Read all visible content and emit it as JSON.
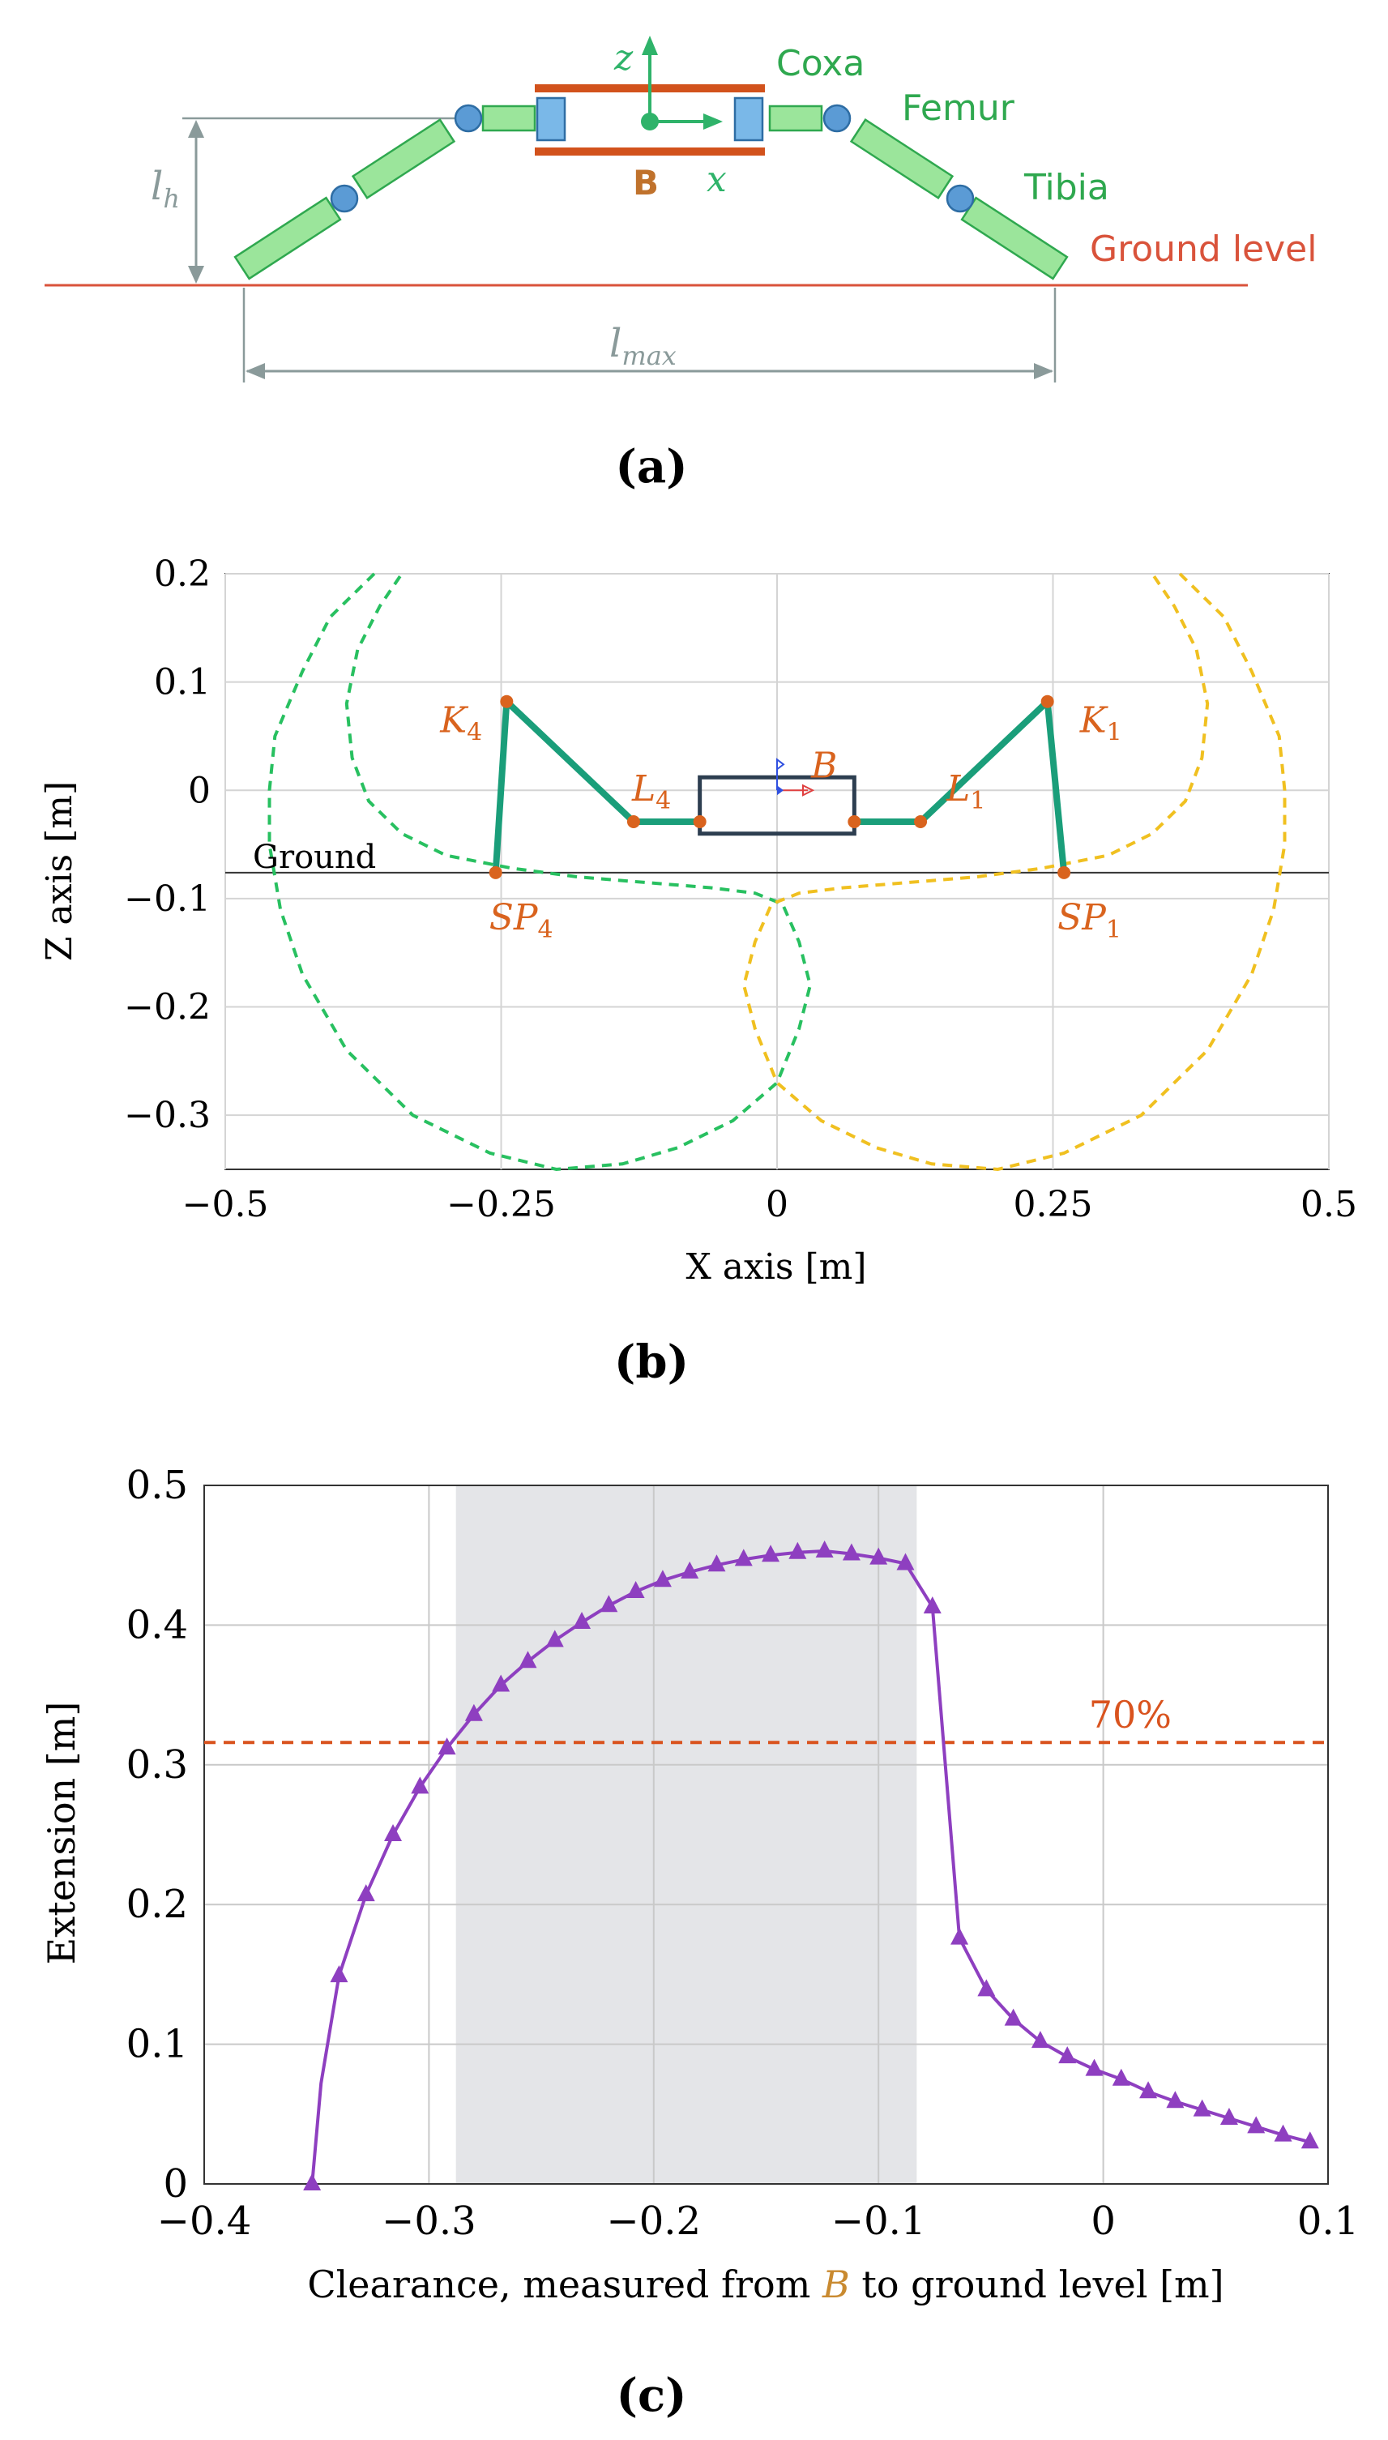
{
  "panel_a": {
    "label": "(a)",
    "coxa": "Coxa",
    "femur": "Femur",
    "tibia": "Tibia",
    "ground": "Ground level",
    "body_label": "B",
    "axis_z": "z",
    "axis_x": "x",
    "lh": "l",
    "lh_sub": "h",
    "lmax": "l",
    "lmax_sub": "max",
    "colors": {
      "link": "#9be59b",
      "link_stroke": "#2fa84f",
      "joint": "#5b9bd5",
      "motor": "#7ab8e8",
      "body": "#d2521c",
      "ground": "#d9533b",
      "dim": "#8a9a9a",
      "axis": "#2fb36a",
      "label_green": "#2fa84f",
      "label_orange": "#c0722c"
    }
  },
  "panel_b": {
    "label": "(b)",
    "chart_data": {
      "type": "scatter",
      "xlabel": "X axis [m]",
      "ylabel": "Z axis [m]",
      "xlim": [
        -0.5,
        0.5
      ],
      "ylim": [
        -0.35,
        0.2
      ],
      "xticks": [
        "−0.5",
        "−0.25",
        "0",
        "0.25",
        "0.5"
      ],
      "xtick_values": [
        -0.5,
        -0.25,
        0,
        0.25,
        0.5
      ],
      "yticks": [
        "0.2",
        "0.1",
        "0",
        "−0.1",
        "−0.2",
        "−0.3"
      ],
      "ytick_values": [
        0.2,
        0.1,
        0,
        -0.1,
        -0.2,
        -0.3
      ],
      "ground_label": "Ground",
      "ground_z": -0.076,
      "body_label": "B",
      "points": [
        {
          "name": "K",
          "sub": "4",
          "x": -0.245,
          "z": 0.082
        },
        {
          "name": "K",
          "sub": "1",
          "x": 0.245,
          "z": 0.082
        },
        {
          "name": "L",
          "sub": "4",
          "x": -0.13,
          "z": -0.029
        },
        {
          "name": "L",
          "sub": "1",
          "x": 0.13,
          "z": -0.029
        },
        {
          "name": "SP",
          "sub": "4",
          "x": -0.255,
          "z": -0.076
        },
        {
          "name": "SP",
          "sub": "1",
          "x": 0.26,
          "z": -0.076
        }
      ],
      "leg_green": [
        [
          -0.07,
          -0.029
        ],
        [
          -0.13,
          -0.029
        ],
        [
          -0.245,
          0.082
        ],
        [
          -0.255,
          -0.076
        ]
      ],
      "leg_orange": [
        [
          0.07,
          -0.029
        ],
        [
          0.13,
          -0.029
        ],
        [
          0.245,
          0.082
        ],
        [
          0.26,
          -0.076
        ]
      ],
      "body_rect": {
        "x0": -0.07,
        "x1": 0.07,
        "z0": -0.04,
        "z1": 0.012
      },
      "workspace_green": [
        [
          -0.365,
          0.2
        ],
        [
          -0.405,
          0.16
        ],
        [
          -0.43,
          0.11
        ],
        [
          -0.455,
          0.05
        ],
        [
          -0.46,
          0.0
        ],
        [
          -0.46,
          -0.05
        ],
        [
          -0.45,
          -0.11
        ],
        [
          -0.43,
          -0.17
        ],
        [
          -0.39,
          -0.24
        ],
        [
          -0.33,
          -0.3
        ],
        [
          -0.26,
          -0.335
        ],
        [
          -0.2,
          -0.35
        ],
        [
          -0.14,
          -0.345
        ],
        [
          -0.09,
          -0.33
        ],
        [
          -0.04,
          -0.305
        ],
        [
          0.0,
          -0.27
        ],
        [
          0.02,
          -0.22
        ],
        [
          0.03,
          -0.18
        ],
        [
          0.02,
          -0.14
        ],
        [
          0.005,
          -0.105
        ],
        [
          -0.02,
          -0.095
        ],
        [
          -0.06,
          -0.09
        ],
        [
          -0.12,
          -0.085
        ],
        [
          -0.18,
          -0.08
        ],
        [
          -0.24,
          -0.072
        ],
        [
          -0.3,
          -0.06
        ],
        [
          -0.34,
          -0.04
        ],
        [
          -0.37,
          -0.01
        ],
        [
          -0.385,
          0.03
        ],
        [
          -0.39,
          0.08
        ],
        [
          -0.38,
          0.13
        ],
        [
          -0.36,
          0.17
        ],
        [
          -0.34,
          0.2
        ]
      ],
      "workspace_orange": [
        [
          0.365,
          0.2
        ],
        [
          0.405,
          0.16
        ],
        [
          0.43,
          0.11
        ],
        [
          0.455,
          0.05
        ],
        [
          0.46,
          0.0
        ],
        [
          0.46,
          -0.05
        ],
        [
          0.45,
          -0.11
        ],
        [
          0.43,
          -0.17
        ],
        [
          0.39,
          -0.24
        ],
        [
          0.33,
          -0.3
        ],
        [
          0.26,
          -0.335
        ],
        [
          0.2,
          -0.35
        ],
        [
          0.14,
          -0.345
        ],
        [
          0.09,
          -0.33
        ],
        [
          0.04,
          -0.305
        ],
        [
          0.0,
          -0.27
        ],
        [
          -0.02,
          -0.22
        ],
        [
          -0.03,
          -0.18
        ],
        [
          -0.02,
          -0.14
        ],
        [
          -0.005,
          -0.105
        ],
        [
          0.02,
          -0.095
        ],
        [
          0.06,
          -0.09
        ],
        [
          0.12,
          -0.085
        ],
        [
          0.18,
          -0.08
        ],
        [
          0.24,
          -0.072
        ],
        [
          0.3,
          -0.06
        ],
        [
          0.34,
          -0.04
        ],
        [
          0.37,
          -0.01
        ],
        [
          0.385,
          0.03
        ],
        [
          0.39,
          0.08
        ],
        [
          0.38,
          0.13
        ],
        [
          0.36,
          0.17
        ],
        [
          0.34,
          0.2
        ]
      ],
      "colors": {
        "green": "#28c060",
        "orange": "#f0c020",
        "leg": "#1a9e7a",
        "point": "#d9631e",
        "body": "#2d3e50",
        "label": "#d9631e",
        "ground": "#333333"
      }
    }
  },
  "panel_c": {
    "label": "(c)",
    "chart_data": {
      "type": "line",
      "xlabel_prefix": "Clearance, measured from ",
      "xlabel_var": "B",
      "xlabel_suffix": " to ground level [m]",
      "ylabel": "Extension [m]",
      "xlim": [
        -0.4,
        0.1
      ],
      "ylim": [
        0,
        0.5
      ],
      "xticks": [
        "−0.4",
        "−0.3",
        "−0.2",
        "−0.1",
        "0",
        "0.1"
      ],
      "xtick_values": [
        -0.4,
        -0.3,
        -0.2,
        -0.1,
        0,
        0.1
      ],
      "yticks": [
        "0.5",
        "0.4",
        "0.3",
        "0.2",
        "0.1",
        "0"
      ],
      "ytick_values": [
        0.5,
        0.4,
        0.3,
        0.2,
        0.1,
        0
      ],
      "shaded_region": [
        -0.288,
        -0.083
      ],
      "threshold": {
        "value": 0.316,
        "label": "70%"
      },
      "series": [
        {
          "name": "extension",
          "x": [
            -0.352,
            -0.348,
            -0.34,
            -0.328,
            -0.316,
            -0.304,
            -0.292,
            -0.28,
            -0.268,
            -0.256,
            -0.244,
            -0.232,
            -0.22,
            -0.208,
            -0.196,
            -0.184,
            -0.172,
            -0.16,
            -0.148,
            -0.136,
            -0.124,
            -0.112,
            -0.1,
            -0.088,
            -0.076,
            -0.064,
            -0.052,
            -0.04,
            -0.028,
            -0.016,
            -0.004,
            0.008,
            0.02,
            0.032,
            0.044,
            0.056,
            0.068,
            0.08,
            0.092
          ],
          "y": [
            0.0,
            0.072,
            0.149,
            0.207,
            0.25,
            0.284,
            0.312,
            0.336,
            0.357,
            0.374,
            0.389,
            0.402,
            0.414,
            0.424,
            0.432,
            0.438,
            0.443,
            0.447,
            0.45,
            0.452,
            0.453,
            0.451,
            0.448,
            0.444,
            0.413,
            0.176,
            0.139,
            0.118,
            0.102,
            0.091,
            0.082,
            0.075,
            0.066,
            0.059,
            0.053,
            0.047,
            0.041,
            0.035,
            0.03
          ],
          "markers": [
            0,
            2,
            3,
            4,
            5,
            6,
            7,
            8,
            9,
            10,
            11,
            12,
            13,
            14,
            15,
            16,
            17,
            18,
            19,
            20,
            21,
            22,
            23,
            24,
            25,
            26,
            27,
            28,
            29,
            30,
            31,
            32,
            33,
            34,
            35,
            36,
            37,
            38
          ]
        }
      ],
      "colors": {
        "line": "#8e3fc0",
        "threshold": "#d9531e",
        "shade": "#e4e5e8",
        "grid": "#c9c9c9"
      }
    }
  }
}
